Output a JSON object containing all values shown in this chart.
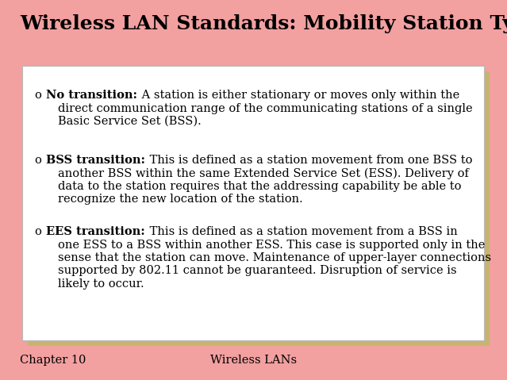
{
  "title": "Wireless LAN Standards: Mobility Station Types",
  "title_fontsize": 18,
  "background_color": "#F2A0A0",
  "box_bg_color": "#FFFFFF",
  "shadow_color": "#C8B470",
  "footer_left": "Chapter 10",
  "footer_center": "Wireless LANs",
  "footer_fontsize": 10.5,
  "item_fontsize": 10.5,
  "items": [
    {
      "bold_label": "No transition:",
      "lines": [
        " A station is either stationary or moves only within the",
        "direct communication range of the communicating stations of a single",
        "Basic Service Set (BSS)."
      ]
    },
    {
      "bold_label": "BSS transition:",
      "lines": [
        " This is defined as a station movement from one BSS to",
        "another BSS within the same Extended Service Set (ESS). Delivery of",
        "data to the station requires that the addressing capability be able to",
        "recognize the new location of the station."
      ]
    },
    {
      "bold_label": "EES transition:",
      "lines": [
        " This is defined as a station movement from a BSS in",
        "one ESS to a BSS within another ESS. This case is supported only in the",
        "sense that the station can move. Maintenance of upper-layer connections",
        "supported by 802.11 cannot be guaranteed. Disruption of service is",
        "likely to occur."
      ]
    }
  ]
}
